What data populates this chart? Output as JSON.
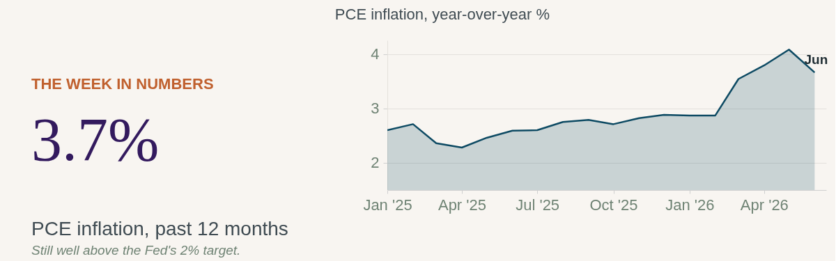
{
  "chart_data": [
    {
      "type": "other",
      "title": "THE WEEK IN NUMBERS",
      "annotations": [
        "3.7%",
        "PCE inflation, past 12 months",
        "Still well above the Fed's 2% target."
      ]
    },
    {
      "type": "area",
      "title": "PCE inflation, year-over-year %",
      "x": [
        "2025-01",
        "2025-02",
        "2025-03",
        "2025-04",
        "2025-05",
        "2025-06",
        "2025-07",
        "2025-08",
        "2025-09",
        "2025-10",
        "2025-11",
        "2025-12",
        "2026-01",
        "2026-02",
        "2026-03",
        "2026-04",
        "2026-05",
        "2026-06"
      ],
      "series": [
        {
          "color": "#0d4a63",
          "values": [
            2.6,
            2.71,
            2.36,
            2.28,
            2.46,
            2.59,
            2.6,
            2.75,
            2.79,
            2.71,
            2.82,
            2.88,
            2.87,
            2.87,
            3.54,
            3.79,
            4.08,
            3.66
          ]
        }
      ],
      "xlim": [
        "2025-01",
        "2026-06-15"
      ],
      "xticks": [
        {
          "value": "2025-01",
          "label": "Jan '25"
        },
        {
          "value": "2025-04",
          "label": "Apr '25"
        },
        {
          "value": "2025-07",
          "label": "Jul '25"
        },
        {
          "value": "2025-10",
          "label": "Oct '25"
        },
        {
          "value": "2026-01",
          "label": "Jan '26"
        },
        {
          "value": "2026-04",
          "label": "Apr '26"
        }
      ],
      "ylim": [
        1.5,
        4.25
      ],
      "yticks": [
        2,
        3,
        4
      ],
      "grid": "y",
      "marker": "none",
      "line_style": "solid",
      "annotations": [
        {
          "text": "Jun",
          "x": "2026-06",
          "y": 3.66
        }
      ]
    }
  ]
}
